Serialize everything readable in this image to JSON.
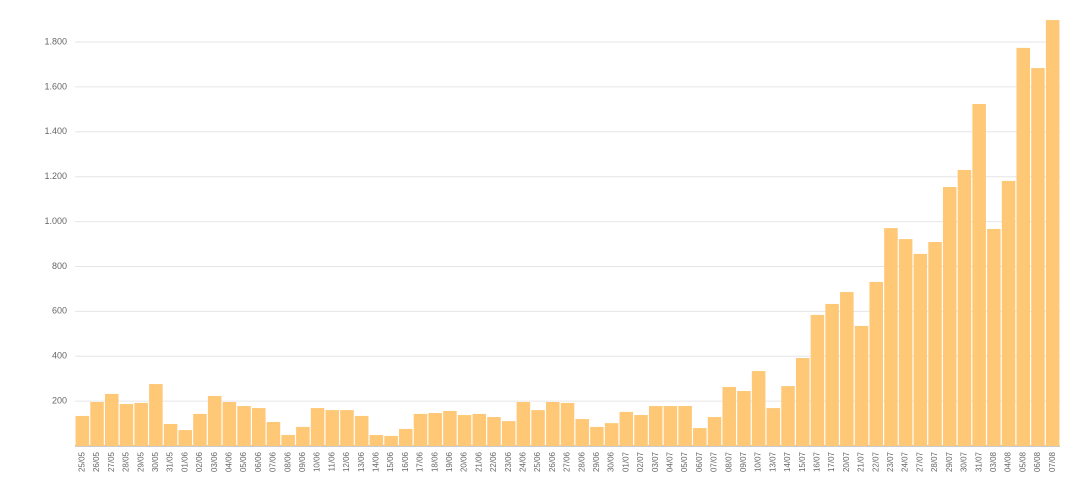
{
  "chart_data": {
    "type": "bar",
    "categories": [
      "25/05",
      "26/05",
      "27/05",
      "28/05",
      "29/05",
      "30/05",
      "31/05",
      "01/06",
      "02/06",
      "03/06",
      "04/06",
      "05/06",
      "06/06",
      "07/06",
      "08/06",
      "09/06",
      "10/06",
      "11/06",
      "12/06",
      "13/06",
      "14/06",
      "15/06",
      "16/06",
      "17/06",
      "18/06",
      "19/06",
      "20/06",
      "21/06",
      "22/06",
      "23/06",
      "24/06",
      "25/06",
      "26/06",
      "27/06",
      "28/06",
      "29/06",
      "30/06",
      "01/07",
      "02/07",
      "03/07",
      "04/07",
      "05/07",
      "06/07",
      "07/07",
      "08/07",
      "09/07",
      "10/07",
      "13/07",
      "14/07",
      "15/07",
      "16/07",
      "17/07",
      "20/07",
      "21/07",
      "22/07",
      "23/07",
      "24/07",
      "27/07",
      "28/07",
      "29/07",
      "30/07",
      "31/07",
      "03/08",
      "04/08",
      "05/08",
      "06/08",
      "07/08"
    ],
    "values": [
      134,
      196,
      232,
      187,
      192,
      276,
      98,
      71,
      143,
      223,
      196,
      178,
      169,
      107,
      49,
      85,
      169,
      160,
      160,
      134,
      49,
      45,
      76,
      143,
      147,
      156,
      138,
      143,
      129,
      111,
      196,
      160,
      196,
      192,
      120,
      85,
      102,
      152,
      138,
      178,
      178,
      178,
      80,
      129,
      263,
      245,
      334,
      169,
      267,
      392,
      584,
      633,
      686,
      535,
      731,
      971,
      922,
      856,
      909,
      1154,
      1230,
      1524,
      967,
      1181,
      1774,
      1684,
      1898
    ],
    "color": "#fec877",
    "ylim": [
      0,
      1900
    ],
    "yticks": [
      200,
      400,
      600,
      800,
      {
        "value": 1000,
        "label": "1.000"
      },
      {
        "value": 1200,
        "label": "1.200"
      },
      {
        "value": 1400,
        "label": "1.400"
      },
      {
        "value": 1600,
        "label": "1.600"
      },
      {
        "value": 1800,
        "label": "1.800"
      }
    ],
    "grid": true
  }
}
